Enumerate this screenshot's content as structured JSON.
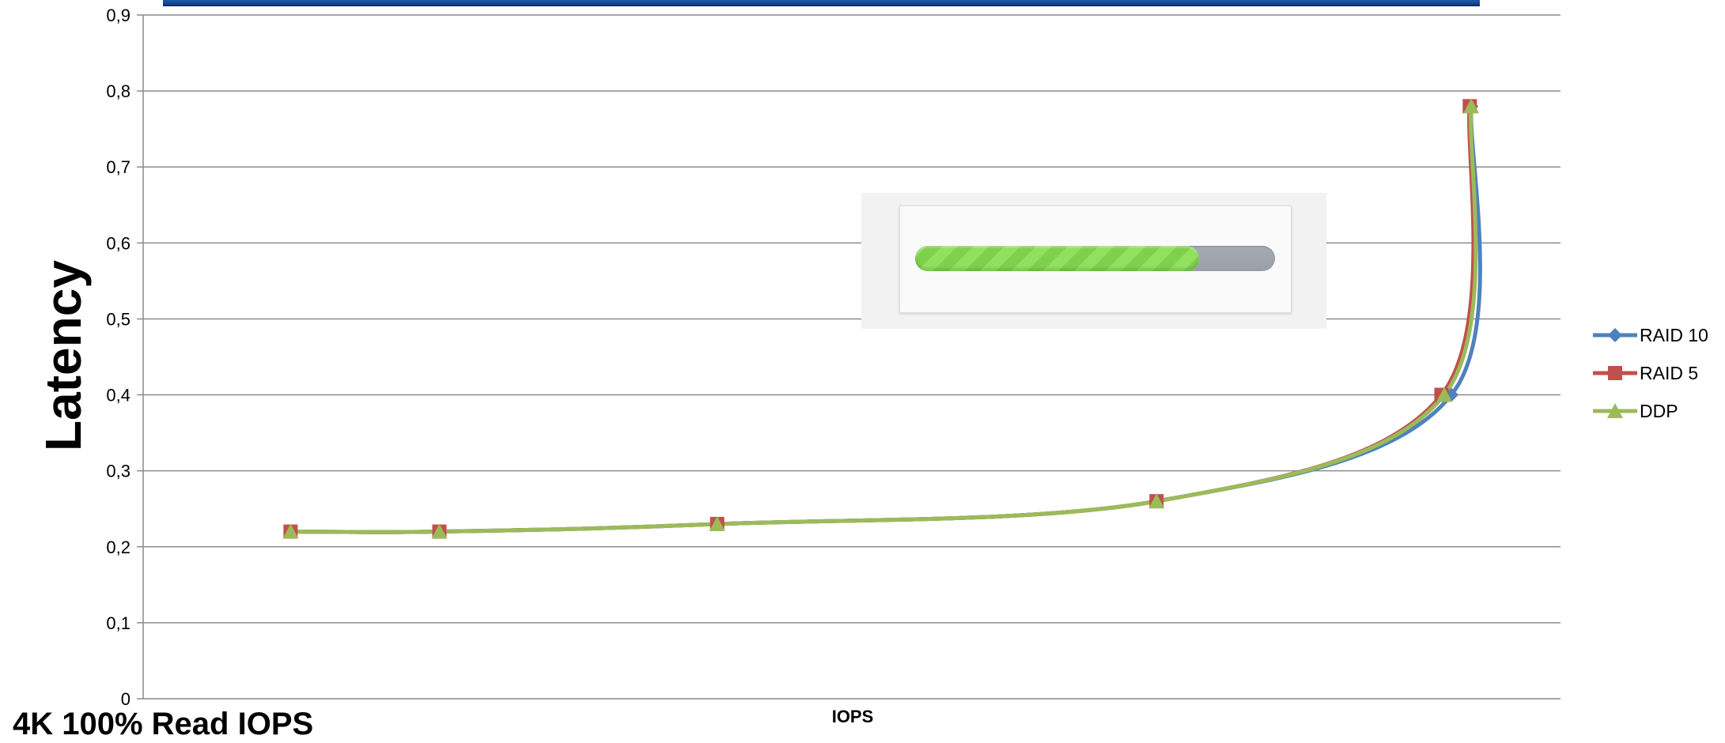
{
  "caption": "4K 100% Read IOPS",
  "progress": {
    "value": 0.79
  },
  "chart_data": {
    "type": "line",
    "title": "",
    "xlabel": "IOPS",
    "ylabel": "Latency",
    "ylim": [
      0,
      0.9
    ],
    "yticks": [
      "0",
      "0,1",
      "0,2",
      "0,3",
      "0,4",
      "0,5",
      "0,6",
      "0,7",
      "0,8",
      "0,9"
    ],
    "xticks": [],
    "grid": true,
    "legend_position": "right",
    "series": [
      {
        "name": "RAID 10",
        "color": "#4f81bd",
        "marker": "diamond",
        "x": [
          0.104,
          0.209,
          0.405,
          0.715,
          0.923,
          0.937
        ],
        "y": [
          0.22,
          0.22,
          0.23,
          0.26,
          0.4,
          0.78
        ]
      },
      {
        "name": "RAID 5",
        "color": "#c0504d",
        "marker": "square",
        "x": [
          0.104,
          0.209,
          0.405,
          0.715,
          0.916,
          0.936
        ],
        "y": [
          0.22,
          0.22,
          0.23,
          0.26,
          0.4,
          0.78
        ]
      },
      {
        "name": "DDP",
        "color": "#9bbb59",
        "marker": "triangle",
        "x": [
          0.104,
          0.209,
          0.405,
          0.715,
          0.918,
          0.937
        ],
        "y": [
          0.22,
          0.22,
          0.23,
          0.26,
          0.4,
          0.78
        ]
      }
    ]
  }
}
